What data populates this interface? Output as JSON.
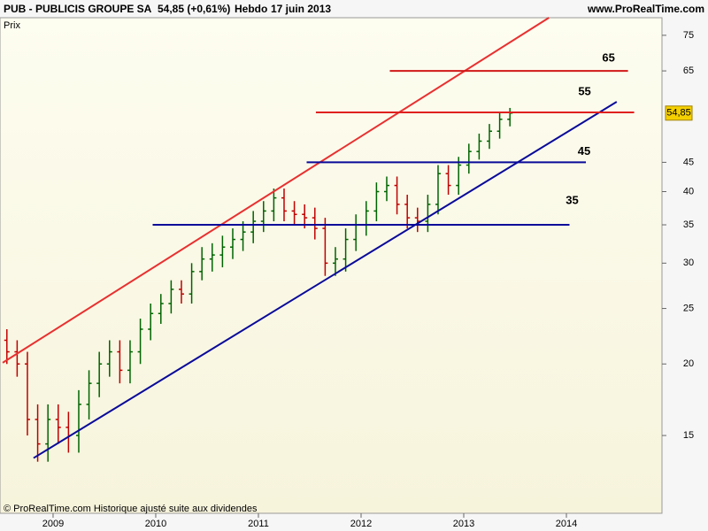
{
  "chart_data": {
    "type": "ohlc",
    "title": "PUB - PUBLICIS GROUPE SA",
    "subtitle": "54,85 (+0,61%)",
    "period": "Hebdo",
    "date": "17 juin 2013",
    "source": "www.ProRealTime.com",
    "ylabel": "Prix",
    "footnote": "© ProRealTime.com Historique ajusté suite aux dividendes",
    "log_scale": true,
    "xlim": [
      2008.483,
      2014.931
    ],
    "xticks": [
      2009,
      2010,
      2011,
      2012,
      2013,
      2014
    ],
    "ylim": [
      10.97,
      80.5
    ],
    "yticks": [
      15,
      20,
      25,
      30,
      35,
      40,
      45,
      65,
      75
    ],
    "up_color": "#006400",
    "down_color": "#c00000",
    "x": [
      2008.55,
      2008.65,
      2008.75,
      2008.85,
      2008.95,
      2009.05,
      2009.15,
      2009.25,
      2009.35,
      2009.45,
      2009.55,
      2009.65,
      2009.75,
      2009.85,
      2009.95,
      2010.05,
      2010.15,
      2010.25,
      2010.35,
      2010.45,
      2010.55,
      2010.65,
      2010.75,
      2010.85,
      2010.95,
      2011.05,
      2011.15,
      2011.25,
      2011.35,
      2011.45,
      2011.55,
      2011.65,
      2011.75,
      2011.85,
      2011.95,
      2012.05,
      2012.15,
      2012.25,
      2012.35,
      2012.45,
      2012.55,
      2012.65,
      2012.75,
      2012.85,
      2012.95,
      2013.05,
      2013.15,
      2013.25,
      2013.35,
      2013.45
    ],
    "open": [
      22,
      21,
      20,
      16,
      14.5,
      16,
      15.5,
      15,
      17,
      18.5,
      20,
      21,
      19.5,
      21,
      23,
      24.5,
      25.5,
      27,
      26.5,
      29,
      30.5,
      31,
      32,
      33,
      34,
      35.5,
      37,
      39,
      37,
      36.5,
      36,
      34.5,
      30,
      30.5,
      33,
      35,
      37,
      40,
      41,
      38,
      36,
      35.5,
      38,
      43,
      41,
      44.5,
      47,
      49,
      51,
      53.5
    ],
    "high": [
      23,
      22,
      21,
      17,
      17,
      17,
      16.5,
      18,
      19.5,
      21,
      22,
      22,
      22,
      24,
      25.5,
      26.5,
      28,
      28,
      30,
      32,
      32.5,
      33.5,
      34.5,
      35.5,
      37,
      38.5,
      40.5,
      40.5,
      38.5,
      38,
      37.5,
      36,
      32,
      34.5,
      36.5,
      38.5,
      41.5,
      42.5,
      42.5,
      39.5,
      37.5,
      39.5,
      44.5,
      44.5,
      46,
      48.5,
      50.5,
      52.5,
      55,
      56
    ],
    "low": [
      20,
      19,
      15,
      13.5,
      13.5,
      14.5,
      14,
      14,
      16,
      17.5,
      19,
      18.5,
      18.5,
      20,
      22,
      23.5,
      24.5,
      25.5,
      25.5,
      28,
      29,
      29.5,
      30.5,
      31.5,
      32.5,
      34,
      35.5,
      35.5,
      35,
      34.5,
      33,
      28.5,
      28.5,
      29,
      31.5,
      33.5,
      35.5,
      38.5,
      36.5,
      34.5,
      34,
      34,
      36.5,
      39.5,
      39.5,
      43,
      45.5,
      47.5,
      49.5,
      52
    ],
    "close": [
      21,
      20,
      16,
      14.5,
      16,
      15.5,
      15,
      17,
      18.5,
      20,
      21,
      19.5,
      21,
      23,
      24.5,
      25.5,
      27,
      26.5,
      29,
      30.5,
      31,
      32,
      33,
      34,
      35.5,
      37,
      39,
      37,
      36.5,
      36,
      34.5,
      30,
      30.5,
      33,
      35,
      37,
      40,
      41,
      38,
      36,
      35.5,
      38,
      43,
      41,
      44.5,
      47,
      49,
      51,
      53.5,
      54.85
    ],
    "last_price": {
      "value": 54.85,
      "label": "54,85"
    },
    "trendlines": [
      {
        "color": "#e83030",
        "x": [
          2008.509,
          2013.83
        ],
        "y": [
          20.1,
          80.5
        ]
      },
      {
        "color": "#0a0a9a",
        "x": [
          2008.81,
          2014.49
        ],
        "y": [
          13.7,
          57.4
        ]
      }
    ],
    "levels": [
      {
        "value": 65,
        "color": "#d01818",
        "x": [
          2012.28,
          2014.6
        ]
      },
      {
        "value": 55,
        "color": "#e02020",
        "x": [
          2011.56,
          2014.66
        ]
      },
      {
        "value": 45,
        "color": "#0a0a9a",
        "x": [
          2011.47,
          2014.19
        ]
      },
      {
        "value": 35,
        "color": "#0a0a9a",
        "x": [
          2009.97,
          2014.03
        ]
      }
    ]
  }
}
